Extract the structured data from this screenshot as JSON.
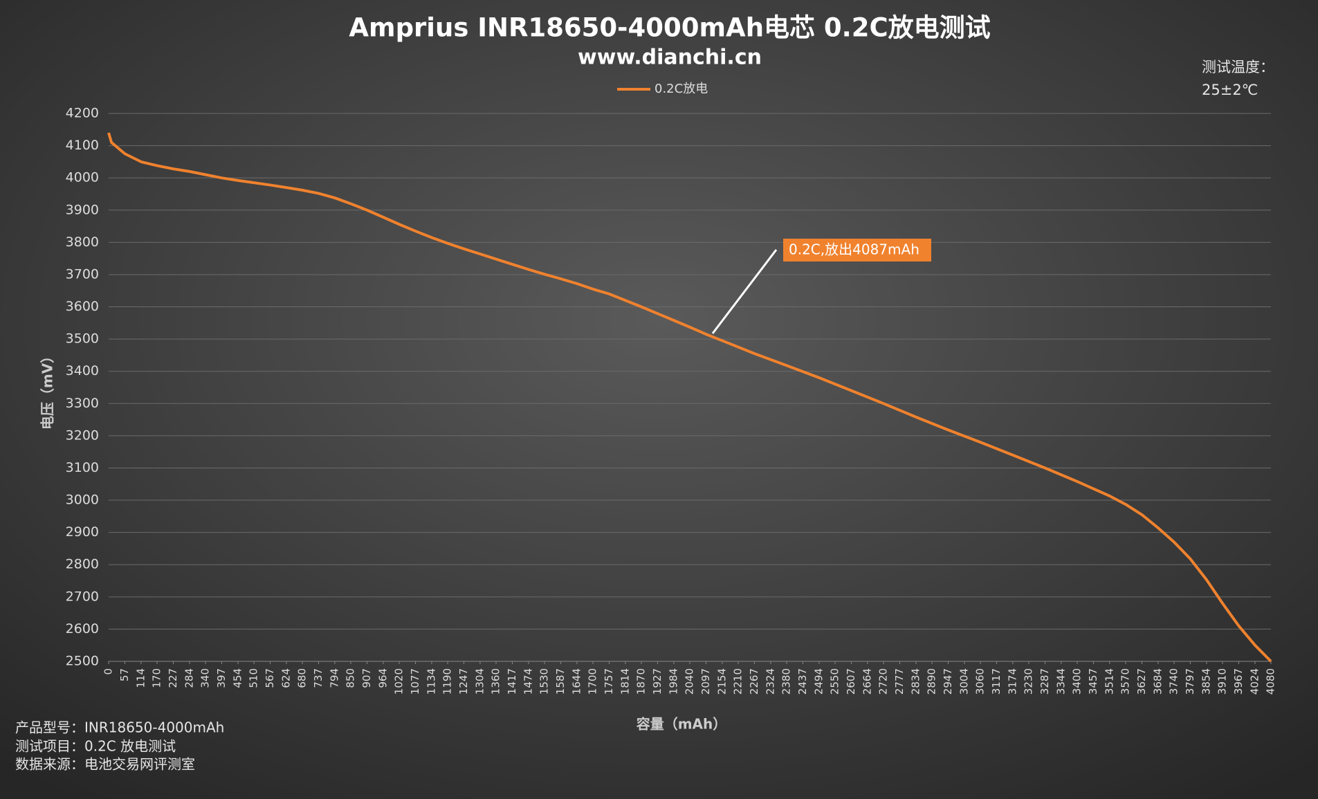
{
  "chart_data": {
    "type": "line",
    "title": "Amprius INR18650-4000mAh电芯 0.2C放电测试",
    "subtitle": "www.dianchi.cn",
    "temperature_label": "测试温度：",
    "temperature": "25±2℃",
    "x_label": "容量（mAh）",
    "y_label": "电压（mV）",
    "annotation": "0.2C,放出4087mAh",
    "footnotes": [
      "产品型号：INR18650-4000mAh",
      "测试项目：0.2C 放电测试",
      "数据来源：电池交易网评测室"
    ],
    "legend": "top",
    "grid": true,
    "x": [
      0,
      10,
      57,
      114,
      170,
      227,
      284,
      340,
      397,
      454,
      510,
      567,
      624,
      680,
      737,
      794,
      850,
      907,
      964,
      1020,
      1077,
      1134,
      1190,
      1247,
      1304,
      1360,
      1417,
      1474,
      1530,
      1587,
      1644,
      1700,
      1757,
      1814,
      1870,
      1927,
      1984,
      2040,
      2097,
      2154,
      2267,
      2380,
      2494,
      2607,
      2720,
      2834,
      2947,
      3060,
      3174,
      3287,
      3400,
      3514,
      3570,
      3627,
      3684,
      3740,
      3797,
      3854,
      3910,
      3967,
      4024,
      4080
    ],
    "series": [
      {
        "name": "0.2C放电",
        "color": "#f0822e",
        "values": [
          4140,
          4110,
          4075,
          4050,
          4038,
          4028,
          4020,
          4010,
          4000,
          3992,
          3985,
          3978,
          3970,
          3962,
          3952,
          3938,
          3920,
          3900,
          3878,
          3856,
          3835,
          3815,
          3797,
          3780,
          3764,
          3748,
          3732,
          3716,
          3701,
          3687,
          3672,
          3655,
          3640,
          3620,
          3600,
          3579,
          3558,
          3537,
          3515,
          3495,
          3455,
          3418,
          3380,
          3340,
          3300,
          3258,
          3218,
          3180,
          3140,
          3100,
          3058,
          3013,
          2987,
          2955,
          2914,
          2870,
          2818,
          2753,
          2680,
          2610,
          2550,
          2500
        ]
      }
    ],
    "xlim": [
      0,
      4080
    ],
    "xticks": [
      0,
      57,
      114,
      170,
      227,
      284,
      340,
      397,
      454,
      510,
      567,
      624,
      680,
      737,
      794,
      850,
      907,
      964,
      1020,
      1077,
      1134,
      1190,
      1247,
      1304,
      1360,
      1417,
      1474,
      1530,
      1587,
      1644,
      1700,
      1757,
      1814,
      1870,
      1927,
      1984,
      2040,
      2097,
      2154,
      2210,
      2267,
      2324,
      2380,
      2437,
      2494,
      2550,
      2607,
      2664,
      2720,
      2777,
      2834,
      2890,
      2947,
      3004,
      3060,
      3117,
      3174,
      3230,
      3287,
      3344,
      3400,
      3457,
      3514,
      3570,
      3627,
      3684,
      3740,
      3797,
      3854,
      3910,
      3967,
      4024,
      4080
    ],
    "ylim": [
      2500,
      4200
    ],
    "yticks": [
      2500,
      2600,
      2700,
      2800,
      2900,
      3000,
      3100,
      3200,
      3300,
      3400,
      3500,
      3600,
      3700,
      3800,
      3900,
      4000,
      4100,
      4200
    ]
  }
}
